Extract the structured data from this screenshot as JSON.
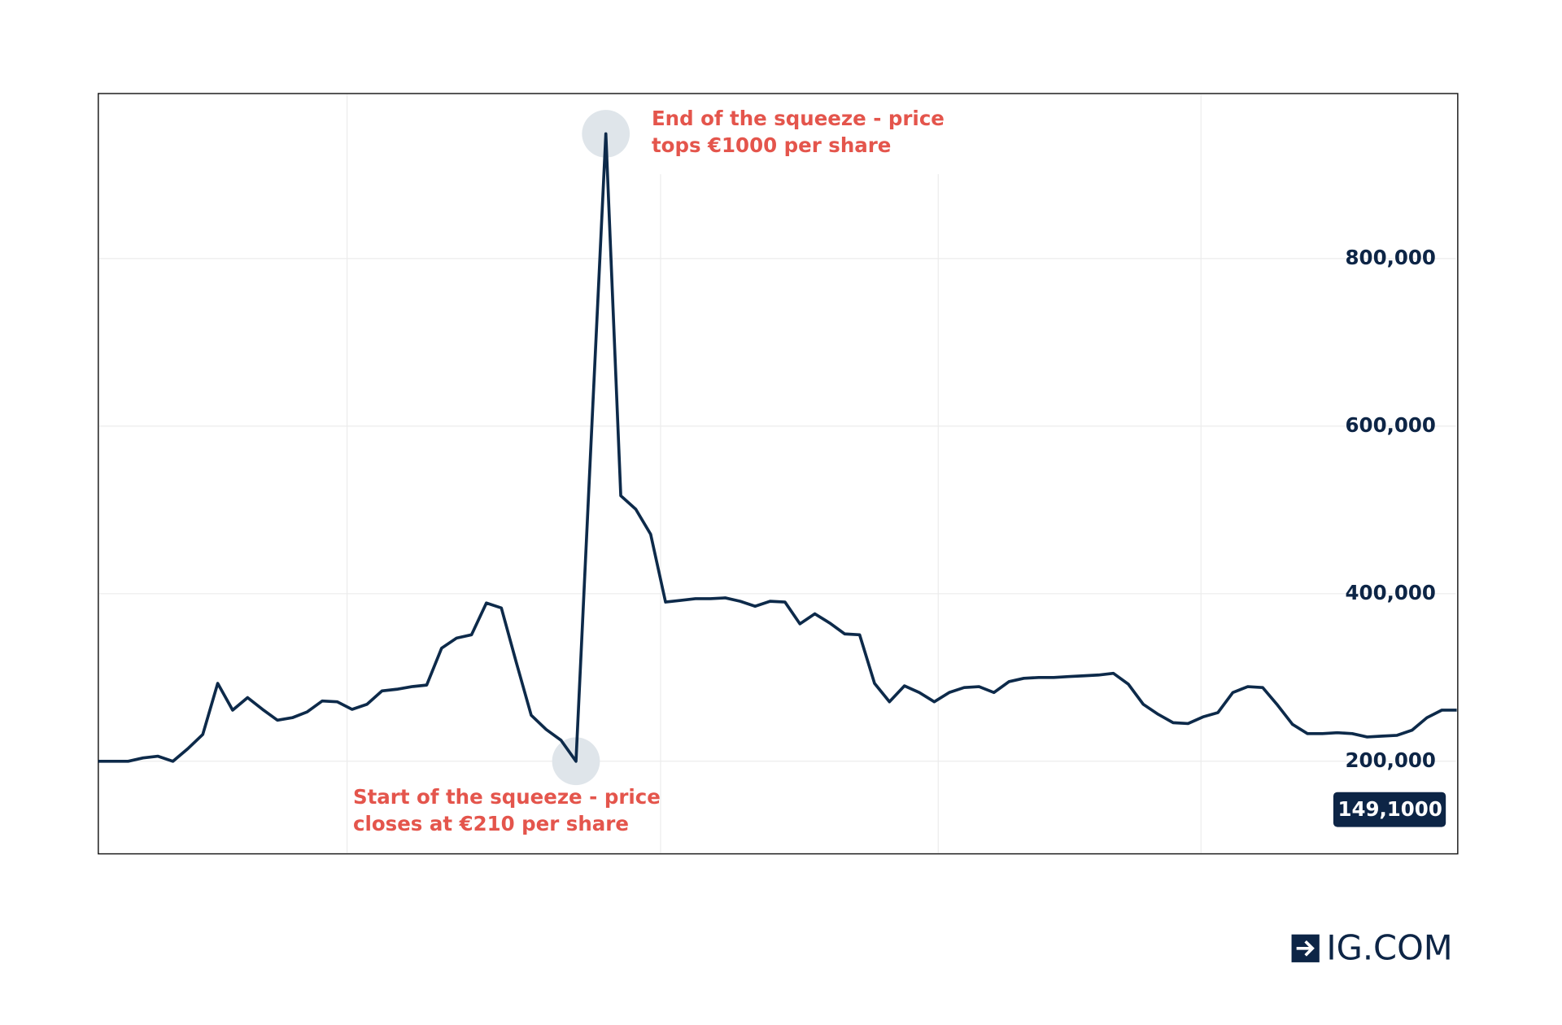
{
  "chart_data": {
    "type": "line",
    "series": [
      {
        "name": null,
        "color": "#0d2a4a",
        "values": [
          200000,
          200000,
          200000,
          204000,
          206000,
          200000,
          215000,
          232000,
          293000,
          261000,
          276000,
          262000,
          249000,
          252000,
          259000,
          272000,
          271000,
          262000,
          268000,
          284000,
          286000,
          289000,
          291000,
          335000,
          347000,
          351000,
          389000,
          383000,
          318000,
          255000,
          238000,
          225000,
          200000,
          577000,
          949000,
          517000,
          501000,
          471000,
          390000,
          392000,
          394000,
          394000,
          395000,
          391000,
          385000,
          391000,
          390000,
          364000,
          376000,
          365000,
          352000,
          351000,
          293000,
          271000,
          290000,
          282000,
          271000,
          282000,
          288000,
          289000,
          282000,
          295000,
          299000,
          300000,
          300000,
          301000,
          302000,
          303000,
          305000,
          292000,
          268000,
          256000,
          246000,
          245000,
          253000,
          258000,
          282000,
          289000,
          288000,
          267000,
          244000,
          233000,
          233000,
          234000,
          233000,
          229000,
          230000,
          231000,
          237000,
          252000,
          261000,
          261000
        ]
      }
    ],
    "ylim": [
      89500,
      997000
    ],
    "yticks": [
      {
        "value": 200000,
        "label": "200,000"
      },
      {
        "value": 400000,
        "label": "400,000"
      },
      {
        "value": 600000,
        "label": "600,000"
      },
      {
        "value": 800000,
        "label": "800,000"
      }
    ],
    "grid": true,
    "current_label": "149,1000",
    "annotations": [
      {
        "lines": [
          "Start of the squeeze - price",
          "closes at €210 per share"
        ]
      },
      {
        "lines": [
          "End of the squeeze - price",
          "tops €1000 per share"
        ]
      }
    ],
    "logo": "IG.COM"
  }
}
